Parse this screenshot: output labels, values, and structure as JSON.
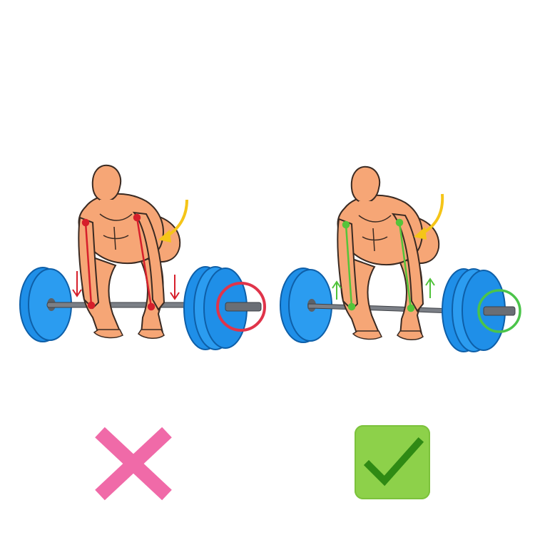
{
  "panels": [
    {
      "id": "wrong",
      "verdict_icon": "cross-icon",
      "arm_line_color": "#d61f2b",
      "arrow_direction": "down",
      "arrow_color": "#d61f2b",
      "highlight_circle_color": "#e0344a",
      "verdict_color": "#f06aa8"
    },
    {
      "id": "right",
      "verdict_icon": "check-icon",
      "arm_line_color": "#55c43a",
      "arrow_direction": "up",
      "arrow_color": "#4fc23a",
      "highlight_circle_color": "#4bc44a",
      "verdict_color": "#2f8a14"
    }
  ],
  "colors": {
    "skin": "#f6a676",
    "skin_outline": "#3a2a22",
    "plate": "#1f8fe8",
    "plate_dark": "#0f6fc4",
    "bar": "#7b7f86",
    "hip_arrow": "#f5c518"
  }
}
